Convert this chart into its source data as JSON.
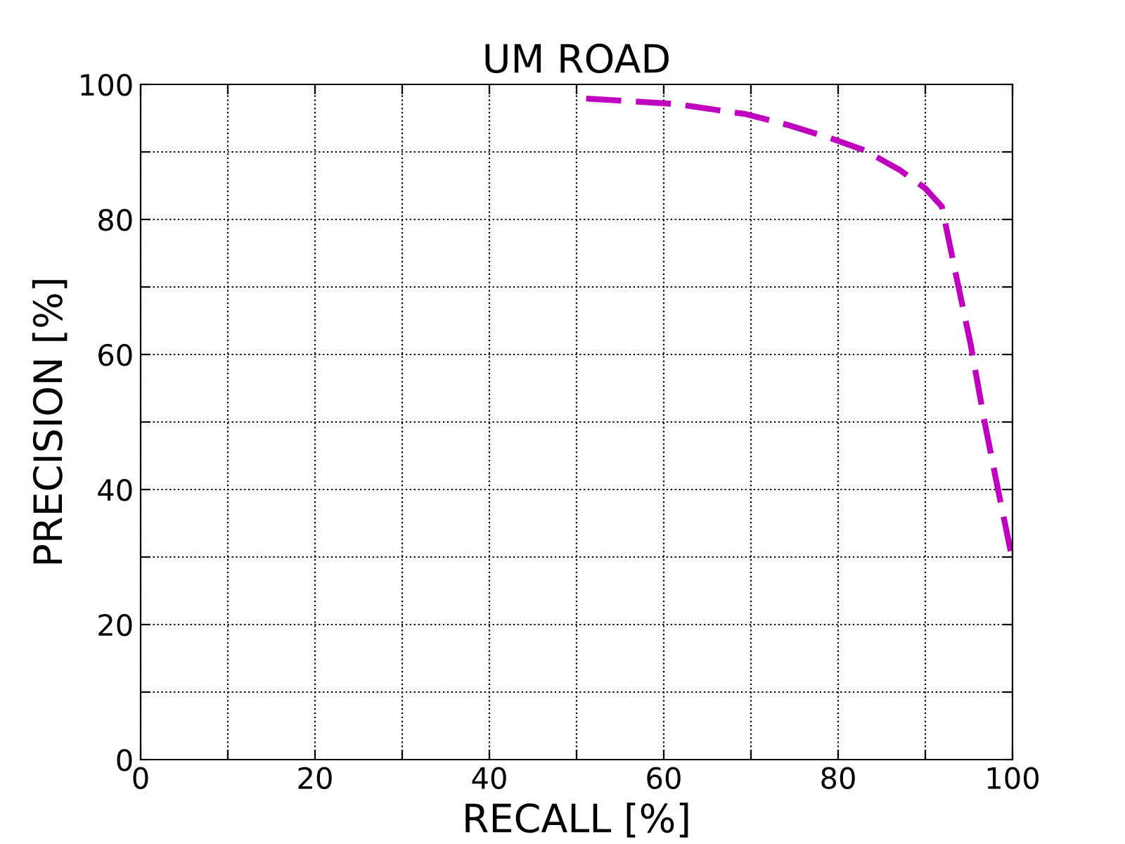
{
  "chart_data": {
    "type": "line",
    "title": "UM ROAD",
    "xlabel": "RECALL [%]",
    "ylabel": "PRECISION [%]",
    "xlim": [
      0,
      100
    ],
    "ylim": [
      0,
      100
    ],
    "xticks": [
      0,
      {
        "value": 10,
        "label": null
      },
      20,
      {
        "value": 30,
        "label": null
      },
      40,
      {
        "value": 50,
        "label": null
      },
      60,
      {
        "value": 70,
        "label": null
      },
      80,
      {
        "value": 90,
        "label": null
      },
      100
    ],
    "yticks": [
      0,
      {
        "value": 10,
        "label": null
      },
      20,
      {
        "value": 30,
        "label": null
      },
      40,
      {
        "value": 50,
        "label": null
      },
      60,
      {
        "value": 70,
        "label": null
      },
      80,
      {
        "value": 90,
        "label": null
      },
      100
    ],
    "grid": true,
    "line_style": "dashed",
    "marker": "none",
    "series": [
      {
        "color": "#bf00bf",
        "x": [
          51.1,
          61.3,
          69.4,
          74.2,
          79.0,
          83.1,
          87.1,
          90.0,
          91.9,
          93.5,
          95.2,
          96.8,
          98.4,
          99.8
        ],
        "values": [
          97.9,
          97.1,
          95.6,
          94.0,
          92.1,
          90.2,
          87.3,
          84.6,
          81.9,
          71.9,
          61.5,
          50.0,
          39.6,
          30.8
        ]
      }
    ]
  }
}
